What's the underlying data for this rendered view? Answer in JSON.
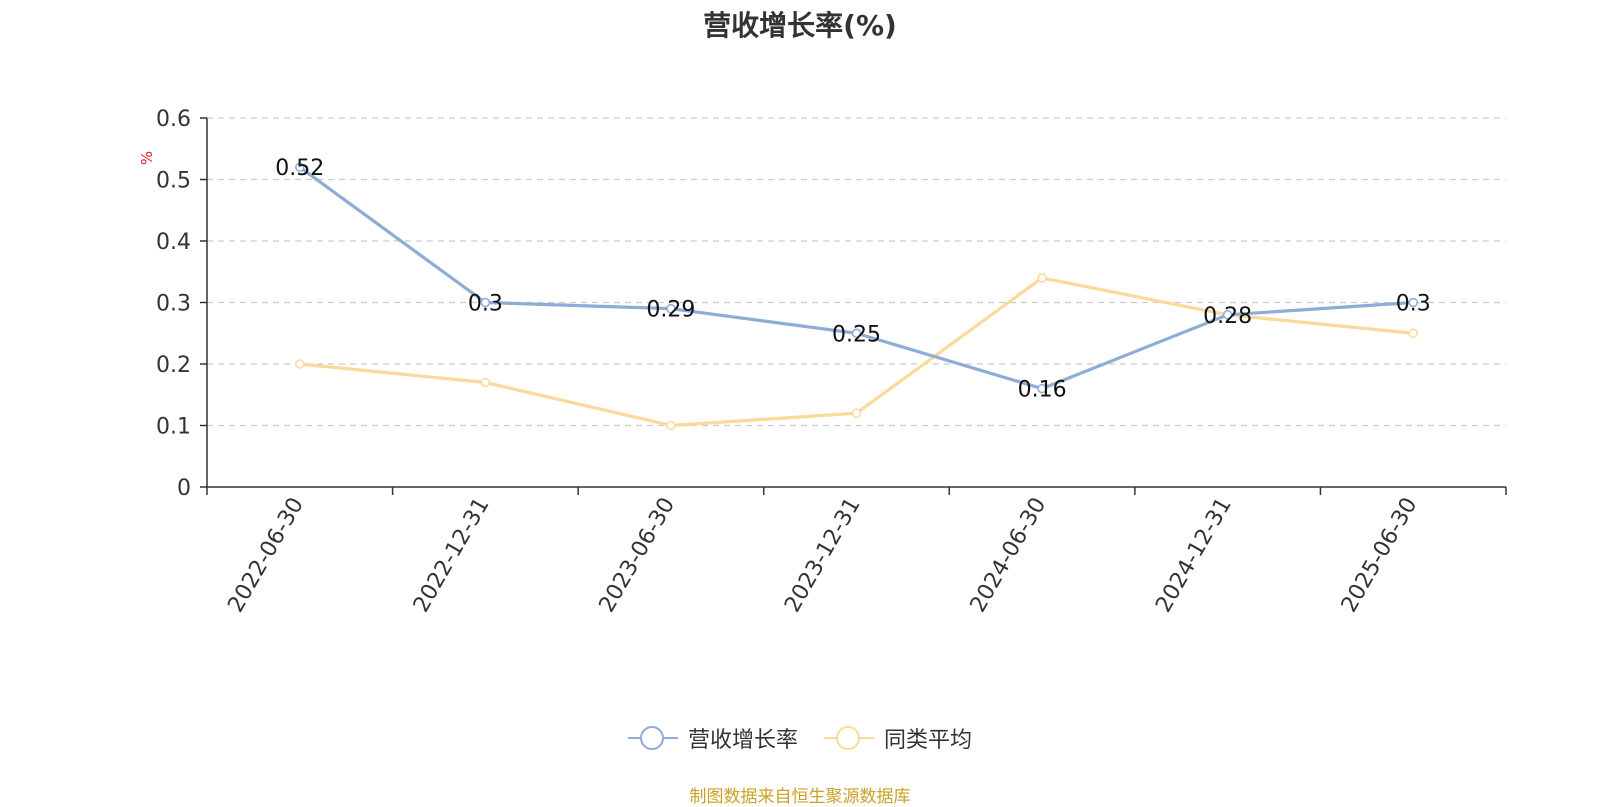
{
  "chart_data": {
    "type": "line",
    "title": "营收增长率(%)",
    "ylabel": "%",
    "ylim": [
      0,
      0.6
    ],
    "yticks": [
      "0",
      "0.1",
      "0.2",
      "0.3",
      "0.4",
      "0.5",
      "0.6"
    ],
    "categories": [
      "2022-06-30",
      "2022-12-31",
      "2023-06-30",
      "2023-12-31",
      "2024-06-30",
      "2024-12-31",
      "2025-06-30"
    ],
    "grid": true,
    "legend_position": "bottom-center",
    "series": [
      {
        "name": "营收增长率",
        "color": "#8eacd6",
        "values": [
          0.52,
          0.3,
          0.29,
          0.25,
          0.16,
          0.28,
          0.3
        ],
        "labels": [
          "0.52",
          "0.3",
          "0.29",
          "0.25",
          "0.16",
          "0.28",
          "0.3"
        ]
      },
      {
        "name": "同类平均",
        "color": "#fbd99a",
        "values": [
          0.2,
          0.17,
          0.1,
          0.12,
          0.34,
          0.28,
          0.25
        ]
      }
    ]
  },
  "source_note": "制图数据来自恒生聚源数据库"
}
